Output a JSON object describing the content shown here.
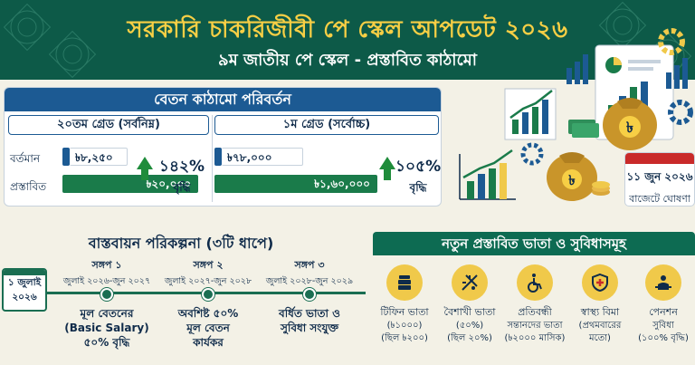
{
  "header": {
    "title": "সরকারি চাকরিজীবী পে স্কেল আপডেট ২০২৬",
    "subtitle": "৯ম জাতীয় পে স্কেল - প্রস্তাবিত কাঠামো"
  },
  "salary_panel": {
    "heading": "বেতন কাঠামো পরিবর্তন",
    "grade20": {
      "header": "২০তম গ্রেড (সর্বনিম্ন)",
      "current_label": "বর্তমান",
      "proposed_label": "প্রস্তাবিত",
      "current_value": "৳৮,২৫০",
      "proposed_value": "৳২০,০০০",
      "increase_pct": "১৪২%",
      "increase_label": "বৃদ্ধি",
      "current_fraction": 0.41,
      "proposed_fraction": 1.0
    },
    "grade1": {
      "header": "১ম গ্রেড (সর্বোচ্চ)",
      "current_value": "৳৭৮,০০০",
      "proposed_value": "৳১,৬০,০০০",
      "increase_pct": "১০৫%",
      "increase_label": "বৃদ্ধি",
      "current_fraction": 0.49,
      "proposed_fraction": 1.0
    }
  },
  "announcement": {
    "date": "১১ জুন ২০২৬",
    "label": "বাজেটে ঘোষণা"
  },
  "timeline": {
    "title": "বাস্তবায়ন পরিকল্পনা (৩টি ধাপে)",
    "start_line1": "১ জুলাই",
    "start_line2": "২০২৬",
    "phases": [
      {
        "title": "সঙ্গপ ১",
        "dates": "জুলাই ২০২৬-জুন ২০২৭",
        "desc_line1": "মূল বেতনের",
        "desc_line2": "(Basic Salary)",
        "desc_line3": "৫০% বৃদ্ধি"
      },
      {
        "title": "সঙ্গপ ২",
        "dates": "জুলাই ২০২৭-জুন ২০২৮",
        "desc_line1": "অবশিষ্ট ৫০%",
        "desc_line2": "মূল বেতন",
        "desc_line3": "কার্যকর"
      },
      {
        "title": "সঙ্গপ ৩",
        "dates": "জুলাই ২০২৮-জুন ২০২৯",
        "desc_line1": "বর্ধিত ভাতা ও",
        "desc_line2": "সুবিধা সংযুক্ত",
        "desc_line3": ""
      }
    ]
  },
  "allowances": {
    "heading": "নতুন প্রস্তাবিত ভাতা ও সুবিধাসমূহ",
    "items": [
      {
        "title": "টিফিন ভাতা",
        "sub1": "(৳১০০০)",
        "sub2": "(ছিল ৳২০০)",
        "icon": "tiffin-icon"
      },
      {
        "title": "বৈশাখী ভাতা",
        "sub1": "(৫০%)",
        "sub2": "(ছিল ২০%)",
        "icon": "festival-icon"
      },
      {
        "title": "প্রতিবন্ধী",
        "sub1": "সন্তানদের ভাতা",
        "sub2": "(৳২০০০ মাসিক)",
        "icon": "wheelchair-icon"
      },
      {
        "title": "স্বাস্থ্য বিমা",
        "sub1": "(প্রথমবারের",
        "sub2": "মতো)",
        "icon": "health-insurance-icon"
      },
      {
        "title": "পেনশন",
        "sub1": "সুবিধা",
        "sub2": "(১০০% বৃদ্ধি)",
        "icon": "pension-icon"
      }
    ]
  },
  "colors": {
    "header_bg": "#0d5a48",
    "title_gold": "#f7cf45",
    "panel_blue": "#1c5a93",
    "proposed_green": "#1a7b4a",
    "timeline_green": "#1a6e52",
    "icon_gold": "#f0c94a"
  }
}
